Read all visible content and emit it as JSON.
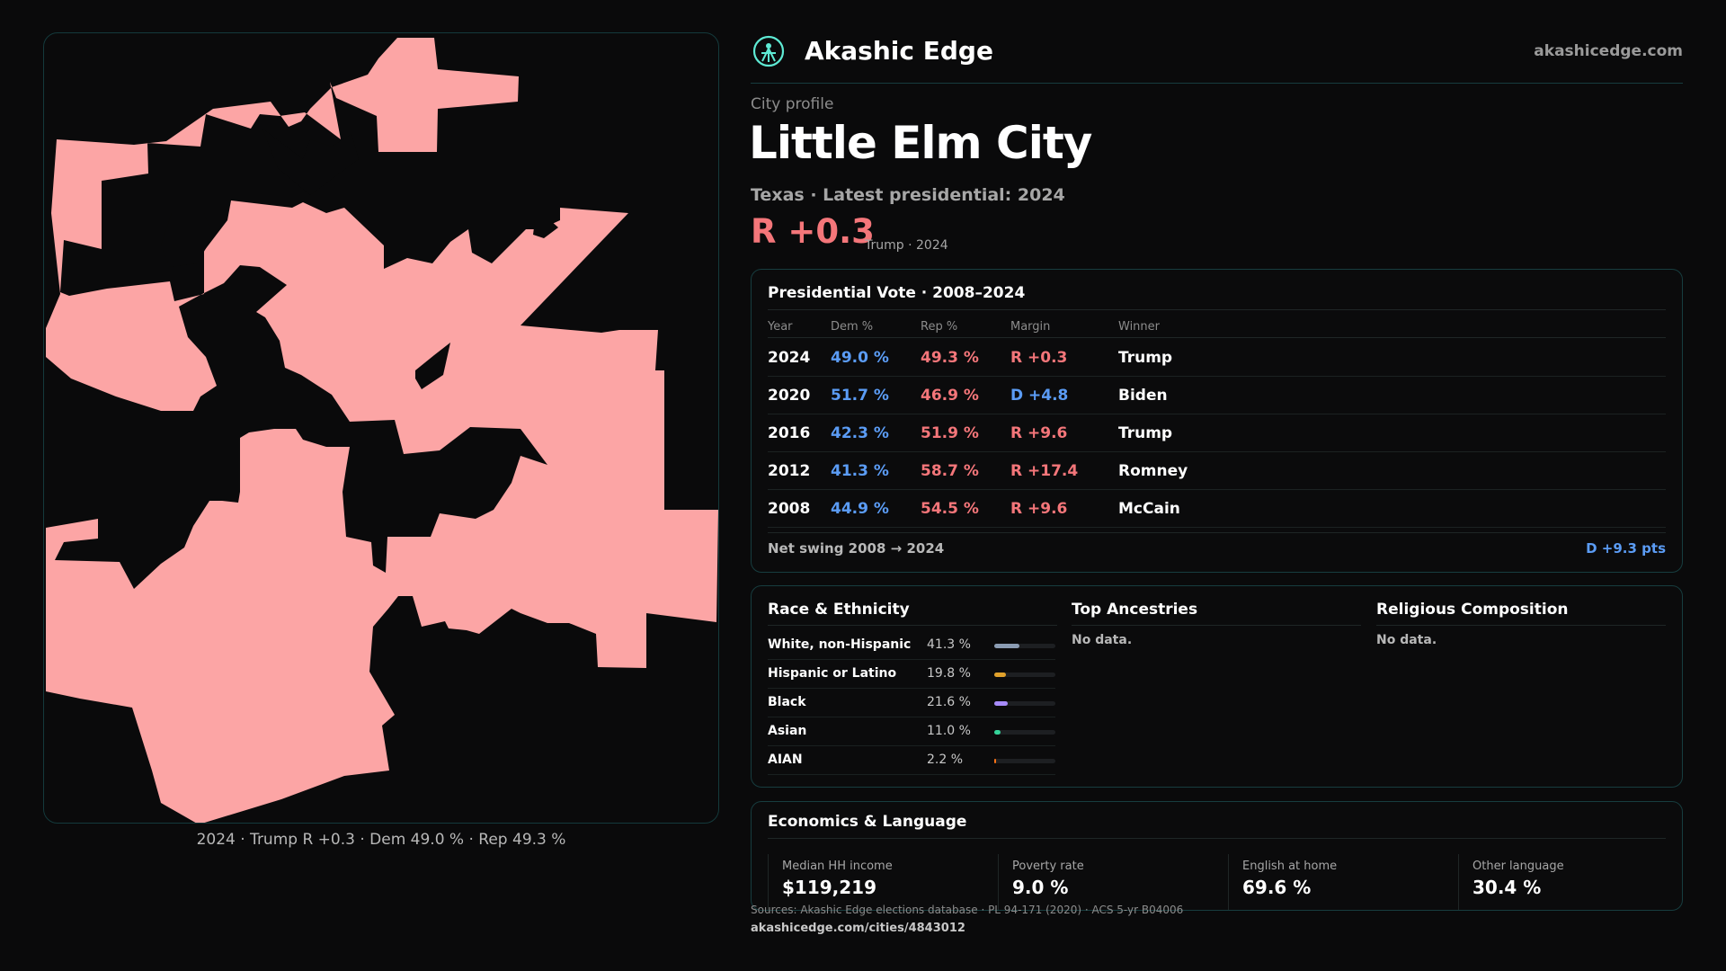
{
  "brand": {
    "name": "Akashic Edge",
    "url": "akashicedge.com"
  },
  "profile": {
    "eyebrow": "City profile",
    "title": "Little Elm City",
    "subline": "Texas · Latest presidential: 2024",
    "headline_margin": "R +0.3",
    "headline_note": "Trump · 2024"
  },
  "map": {
    "caption": "2024 · Trump R +0.3 · Dem 49.0 % · Rep 49.3 %",
    "fill_color": "#fca5a5"
  },
  "votes": {
    "title": "Presidential Vote · 2008–2024",
    "headers": {
      "year": "Year",
      "dem": "Dem %",
      "rep": "Rep %",
      "margin": "Margin",
      "winner": "Winner"
    },
    "rows": [
      {
        "year": "2024",
        "dem": "49.0 %",
        "rep": "49.3 %",
        "margin": "R +0.3",
        "margin_party": "rep",
        "winner": "Trump"
      },
      {
        "year": "2020",
        "dem": "51.7 %",
        "rep": "46.9 %",
        "margin": "D +4.8",
        "margin_party": "dem",
        "winner": "Biden"
      },
      {
        "year": "2016",
        "dem": "42.3 %",
        "rep": "51.9 %",
        "margin": "R +9.6",
        "margin_party": "rep",
        "winner": "Trump"
      },
      {
        "year": "2012",
        "dem": "41.3 %",
        "rep": "58.7 %",
        "margin": "R +17.4",
        "margin_party": "rep",
        "winner": "Romney"
      },
      {
        "year": "2008",
        "dem": "44.9 %",
        "rep": "54.5 %",
        "margin": "R +9.6",
        "margin_party": "rep",
        "winner": "McCain"
      }
    ],
    "swing_label": "Net swing 2008 → 2024",
    "swing_value": "D +9.3 pts",
    "colors": {
      "dem": "#5b9cf5",
      "rep": "#f4767a"
    }
  },
  "race": {
    "title": "Race & Ethnicity",
    "rows": [
      {
        "label": "White, non-Hispanic",
        "pct": "41.3 %",
        "value": 0.413,
        "color": "#8b9cb3"
      },
      {
        "label": "Hispanic or Latino",
        "pct": "19.8 %",
        "value": 0.198,
        "color": "#e0a12b"
      },
      {
        "label": "Black",
        "pct": "21.6 %",
        "value": 0.216,
        "color": "#a78bfa"
      },
      {
        "label": "Asian",
        "pct": "11.0 %",
        "value": 0.11,
        "color": "#34d399"
      },
      {
        "label": "AIAN",
        "pct": "2.2 %",
        "value": 0.022,
        "color": "#f97316"
      }
    ]
  },
  "ancestries": {
    "title": "Top Ancestries",
    "empty": "No data."
  },
  "religion": {
    "title": "Religious Composition",
    "empty": "No data."
  },
  "economics": {
    "title": "Economics & Language",
    "stats": [
      {
        "label": "Median HH income",
        "value": "$119,219"
      },
      {
        "label": "Poverty rate",
        "value": "9.0 %"
      },
      {
        "label": "English at home",
        "value": "69.6 %"
      },
      {
        "label": "Other language",
        "value": "30.4 %"
      }
    ]
  },
  "footer": {
    "sources": "Sources: Akashic Edge elections database · PL 94-171 (2020) · ACS 5-yr B04006",
    "page_url": "akashicedge.com/cities/4843012"
  }
}
